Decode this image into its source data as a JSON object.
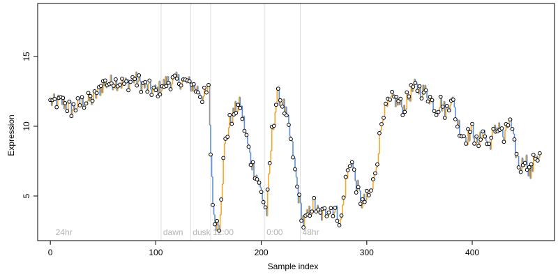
{
  "chart_data": {
    "type": "line",
    "title": "",
    "xlabel": "Sample index",
    "ylabel": "Expression",
    "xlim": [
      -12,
      478
    ],
    "ylim": [
      1.8,
      18.8
    ],
    "x_ticks": [
      0,
      100,
      200,
      300,
      400
    ],
    "y_ticks": [
      5,
      10,
      15
    ],
    "grid": false,
    "legend": "none",
    "colors": {
      "connector": "#999999",
      "rise": "#f5a623",
      "fall": "#5b8fdc",
      "point_stroke": "#000000",
      "point_fill": "#ffffff",
      "phase_line": "#dddddd",
      "phase_text": "#b5b5b5",
      "frame": "#000000"
    },
    "phase_markers": [
      {
        "x": 3,
        "label": "24hr",
        "line": false
      },
      {
        "x": 105,
        "label": "dawn",
        "line": true
      },
      {
        "x": 133,
        "label": "dusk",
        "line": true
      },
      {
        "x": 152,
        "label": "12:00",
        "line": true
      },
      {
        "x": 203,
        "label": "0:00",
        "line": true
      },
      {
        "x": 237,
        "label": "48hr",
        "line": true
      }
    ],
    "anchors": [
      [
        0,
        11.7
      ],
      [
        10,
        11.8
      ],
      [
        20,
        11.2
      ],
      [
        30,
        11.7
      ],
      [
        40,
        11.9
      ],
      [
        50,
        13.0
      ],
      [
        60,
        13.2
      ],
      [
        70,
        13.0
      ],
      [
        80,
        13.4
      ],
      [
        90,
        12.8
      ],
      [
        100,
        12.5
      ],
      [
        110,
        13.2
      ],
      [
        120,
        13.3
      ],
      [
        130,
        13.1
      ],
      [
        140,
        12.6
      ],
      [
        145,
        12.1
      ],
      [
        150,
        12.6
      ],
      [
        152,
        8.0
      ],
      [
        155,
        3.2
      ],
      [
        160,
        3.0
      ],
      [
        165,
        8.5
      ],
      [
        170,
        10.3
      ],
      [
        175,
        11.2
      ],
      [
        180,
        11.6
      ],
      [
        185,
        9.5
      ],
      [
        190,
        7.5
      ],
      [
        195,
        6.5
      ],
      [
        200,
        5.2
      ],
      [
        205,
        3.8
      ],
      [
        210,
        9.5
      ],
      [
        215,
        12.2
      ],
      [
        220,
        11.8
      ],
      [
        225,
        10.2
      ],
      [
        230,
        8.0
      ],
      [
        235,
        5.0
      ],
      [
        240,
        3.0
      ],
      [
        245,
        3.8
      ],
      [
        250,
        4.5
      ],
      [
        255,
        3.5
      ],
      [
        260,
        3.8
      ],
      [
        265,
        4.2
      ],
      [
        270,
        4.0
      ],
      [
        275,
        3.0
      ],
      [
        280,
        6.0
      ],
      [
        285,
        7.7
      ],
      [
        290,
        5.8
      ],
      [
        295,
        4.5
      ],
      [
        300,
        4.8
      ],
      [
        305,
        5.5
      ],
      [
        310,
        7.8
      ],
      [
        315,
        11.0
      ],
      [
        320,
        11.4
      ],
      [
        325,
        12.0
      ],
      [
        330,
        11.6
      ],
      [
        335,
        11.3
      ],
      [
        340,
        12.2
      ],
      [
        345,
        12.8
      ],
      [
        350,
        12.6
      ],
      [
        355,
        12.5
      ],
      [
        360,
        12.0
      ],
      [
        365,
        11.2
      ],
      [
        370,
        11.7
      ],
      [
        375,
        11.0
      ],
      [
        380,
        12.2
      ],
      [
        385,
        10.5
      ],
      [
        390,
        9.5
      ],
      [
        395,
        9.2
      ],
      [
        400,
        9.8
      ],
      [
        405,
        8.5
      ],
      [
        410,
        9.8
      ],
      [
        415,
        8.5
      ],
      [
        420,
        9.5
      ],
      [
        425,
        10.2
      ],
      [
        430,
        9.0
      ],
      [
        435,
        10.5
      ],
      [
        440,
        8.5
      ],
      [
        445,
        7.0
      ],
      [
        450,
        7.8
      ],
      [
        455,
        6.5
      ],
      [
        460,
        8.0
      ],
      [
        464,
        7.8
      ]
    ]
  }
}
